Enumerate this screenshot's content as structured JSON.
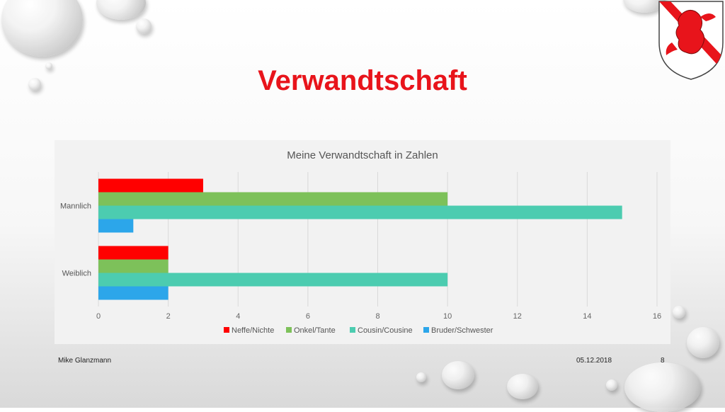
{
  "slide": {
    "title": "Verwandtschaft",
    "footer_author": "Mike Glanzmann",
    "footer_date": "05.12.2018",
    "footer_page": "8",
    "crest_icon": "lion-coat-of-arms-icon"
  },
  "chart_data": {
    "type": "bar",
    "orientation": "horizontal",
    "title": "Meine Verwandtschaft in Zahlen",
    "categories": [
      "Mannlich",
      "Weiblich"
    ],
    "series": [
      {
        "name": "Neffe/Nichte",
        "color": "#ff0000",
        "values": [
          3,
          2
        ]
      },
      {
        "name": "Onkel/Tante",
        "color": "#7dc15a",
        "values": [
          10,
          2
        ]
      },
      {
        "name": "Cousin/Cousine",
        "color": "#4cccb0",
        "values": [
          15,
          10
        ]
      },
      {
        "name": "Bruder/Schwester",
        "color": "#2ca6ea",
        "values": [
          1,
          2
        ]
      }
    ],
    "xlim": [
      0,
      16
    ],
    "xticks": [
      0,
      2,
      4,
      6,
      8,
      10,
      12,
      14,
      16
    ],
    "grid": true,
    "legend_position": "bottom"
  }
}
